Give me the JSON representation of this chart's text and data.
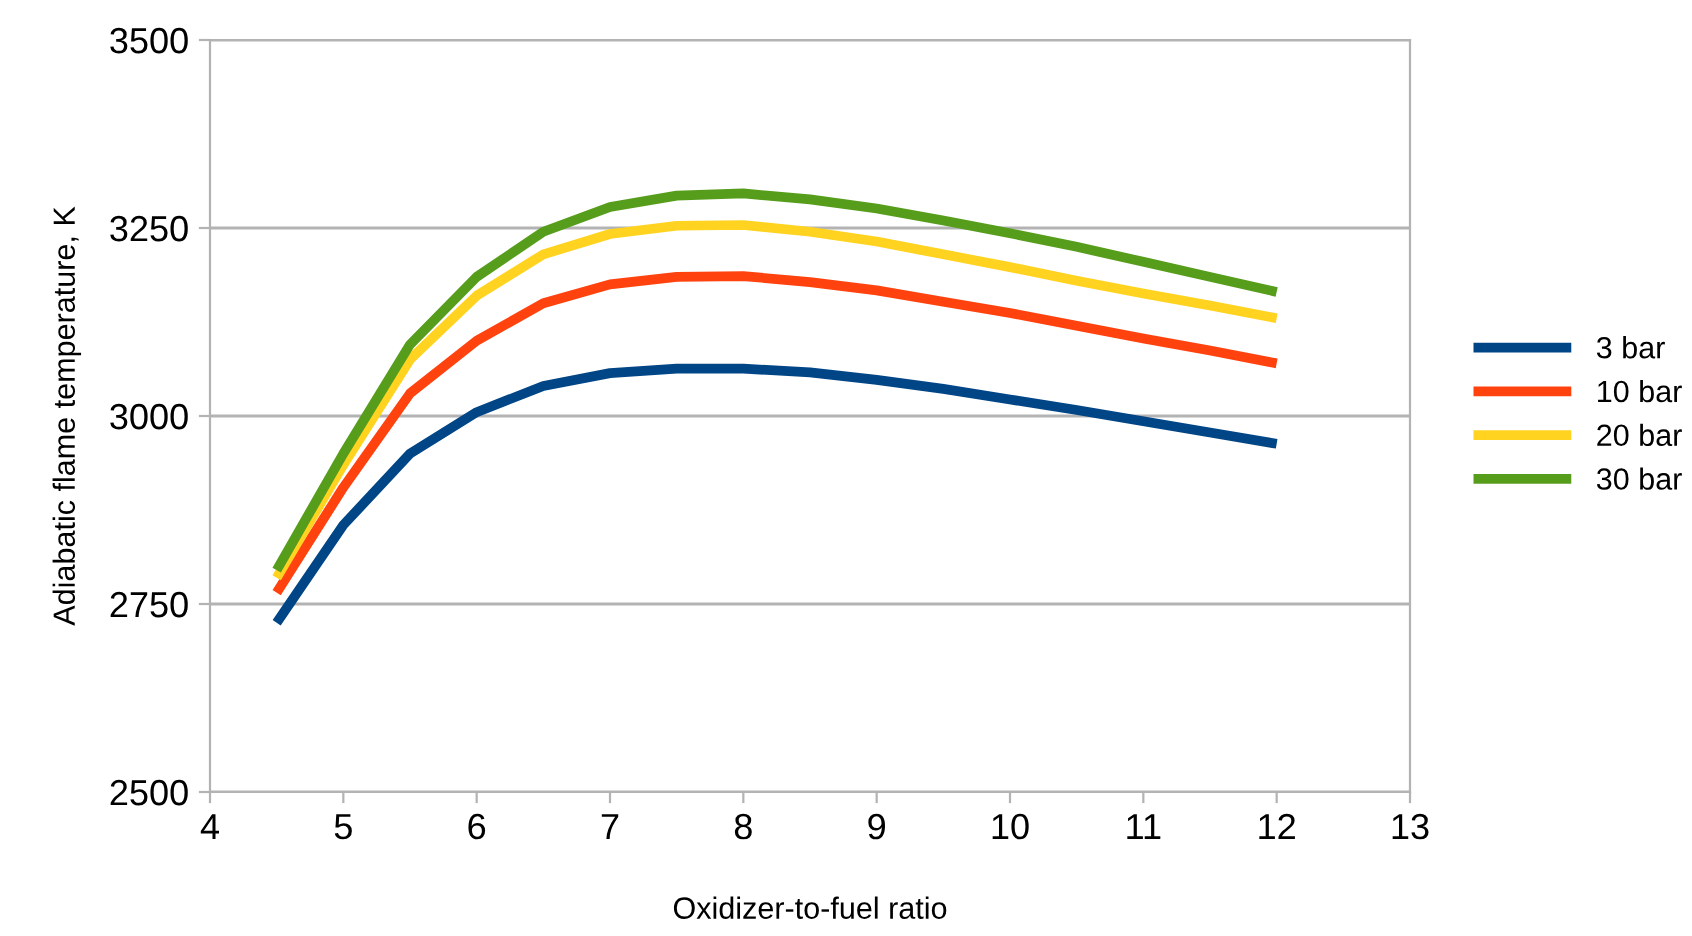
{
  "chart_data": {
    "type": "line",
    "xlabel": "Oxidizer-to-fuel ratio",
    "ylabel": "Adiabatic flame temperature, K",
    "x": [
      4.5,
      5,
      5.5,
      6,
      6.5,
      7,
      7.5,
      8,
      8.5,
      9,
      9.5,
      10,
      10.5,
      11,
      11.5,
      12
    ],
    "series": [
      {
        "name": "3 bar",
        "color": "#004586",
        "values": [
          2725,
          2855,
          2950,
          3005,
          3040,
          3057,
          3063,
          3063,
          3058,
          3048,
          3036,
          3022,
          3008,
          2993,
          2978,
          2963
        ]
      },
      {
        "name": "10 bar",
        "color": "#ff420e",
        "values": [
          2765,
          2905,
          3030,
          3100,
          3150,
          3175,
          3185,
          3186,
          3178,
          3167,
          3152,
          3137,
          3120,
          3103,
          3087,
          3070
        ]
      },
      {
        "name": "20 bar",
        "color": "#ffd320",
        "values": [
          2785,
          2935,
          3075,
          3160,
          3215,
          3242,
          3253,
          3254,
          3245,
          3232,
          3215,
          3198,
          3180,
          3163,
          3147,
          3130
        ]
      },
      {
        "name": "30 bar",
        "color": "#579d1c",
        "values": [
          2795,
          2950,
          3095,
          3185,
          3245,
          3278,
          3293,
          3296,
          3288,
          3276,
          3260,
          3243,
          3225,
          3205,
          3185,
          3165
        ]
      }
    ],
    "xlim": [
      4,
      13
    ],
    "xticks": [
      4,
      5,
      6,
      7,
      8,
      9,
      10,
      11,
      12,
      13
    ],
    "ylim": [
      2500,
      3500
    ],
    "yticks": [
      2500,
      2750,
      3000,
      3250,
      3500
    ],
    "grid": "y",
    "legend": "right",
    "marker": "none",
    "line_style": "solid"
  }
}
